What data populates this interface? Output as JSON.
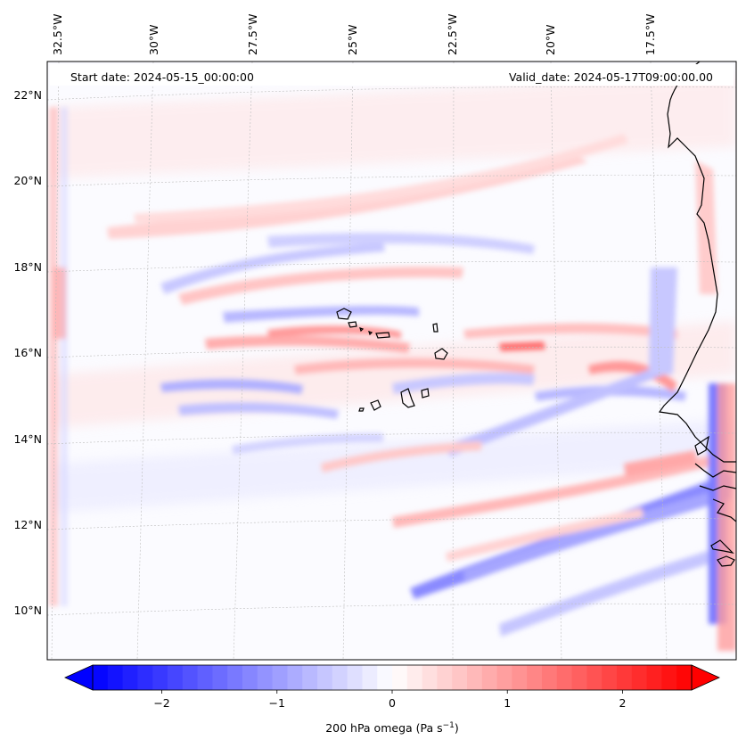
{
  "map": {
    "start_date": "Start date: 2024-05-15_00:00:00",
    "valid_date": "Valid_date: 2024-05-17T09:00:00.00",
    "lon_labels": [
      "32.5°W",
      "30°W",
      "27.5°W",
      "25°W",
      "22.5°W",
      "20°W",
      "17.5°W"
    ],
    "lat_labels": [
      "22°N",
      "20°N",
      "18°N",
      "16°N",
      "14°N",
      "12°N",
      "10°N"
    ],
    "variable": "200 hPa omega",
    "units": "Pa s−1"
  },
  "colorbar": {
    "label_prefix": "200 hPa omega (Pa s",
    "label_sup": "−1",
    "label_suffix": ")",
    "ticks": [
      "−2",
      "−1",
      "0",
      "1",
      "2"
    ],
    "tick_values": [
      -2,
      -1,
      0,
      1,
      2
    ],
    "range": [
      -2.6,
      2.6
    ],
    "colormap": "bwr",
    "low_color": "#0000ff",
    "mid_color": "#ffffff",
    "high_color": "#ff0000"
  }
}
